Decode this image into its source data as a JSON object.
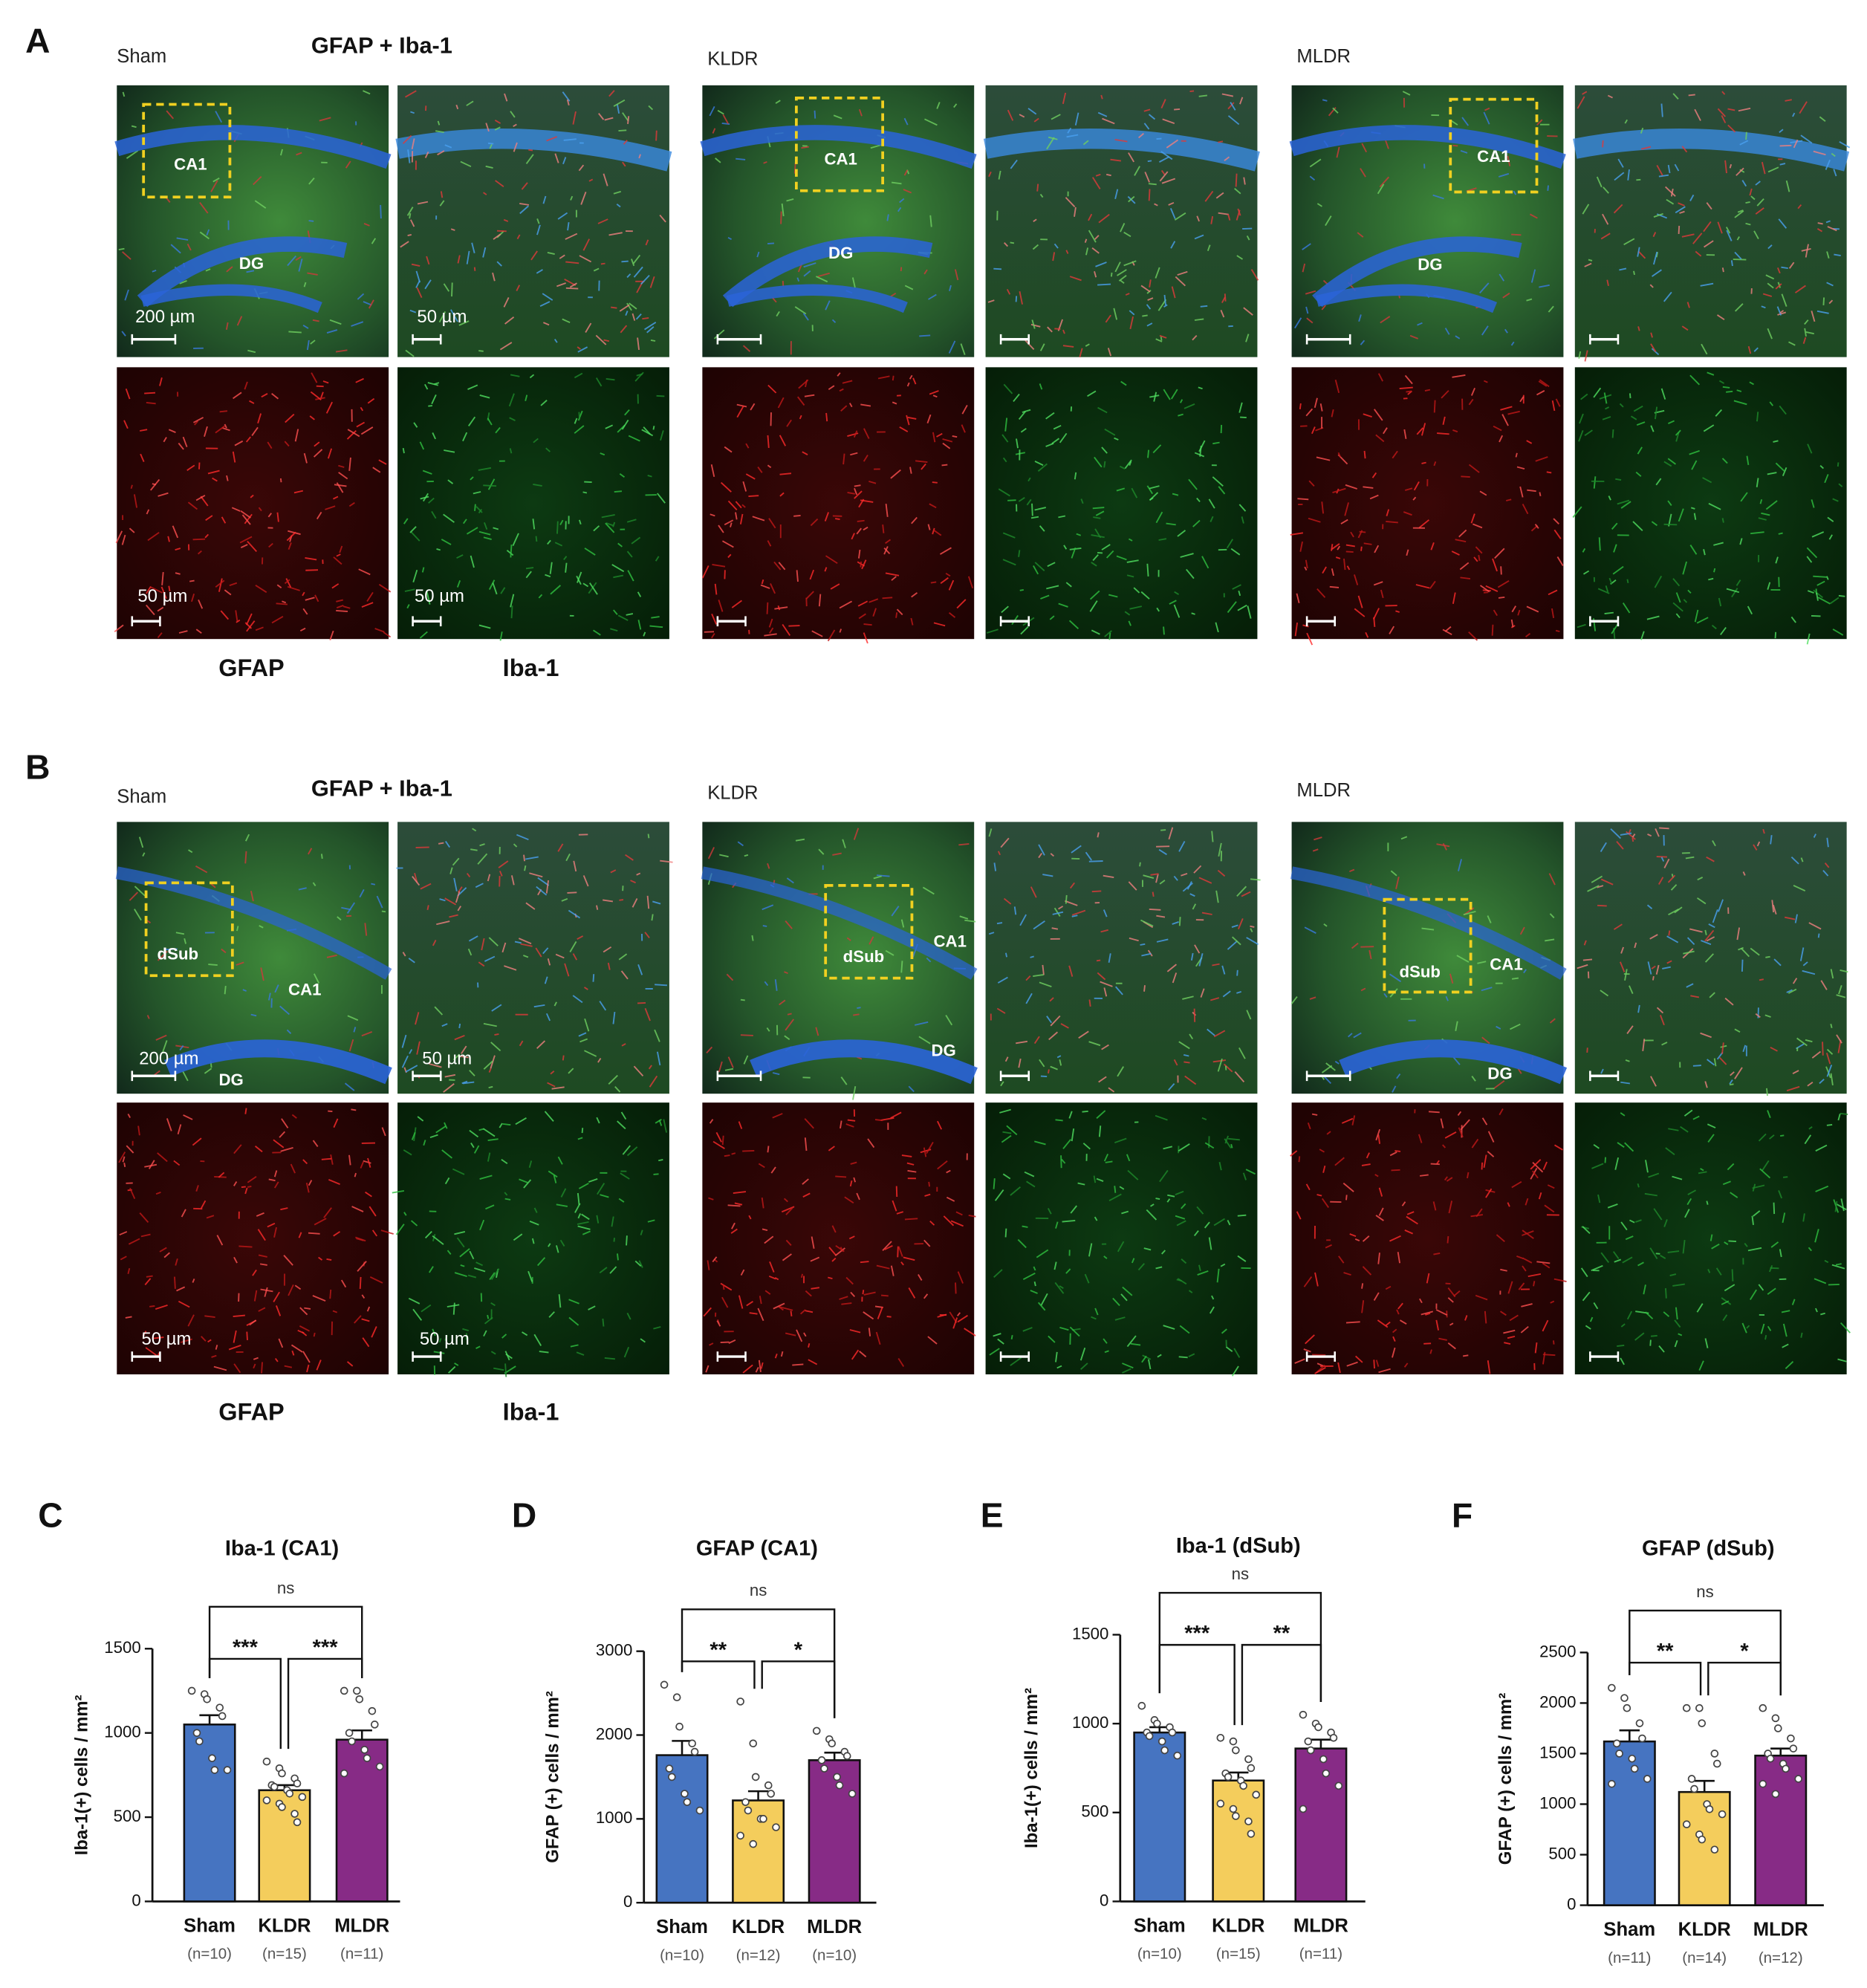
{
  "panel_a": {
    "label": "A",
    "stain": "GFAP + Iba-1",
    "groups": [
      "Sham",
      "KLDR",
      "MLDR"
    ],
    "channels": [
      "GFAP",
      "Iba-1"
    ],
    "regions": [
      [
        "CA1",
        "DG"
      ],
      [
        "CA1",
        "DG"
      ],
      [
        "CA1",
        "DG"
      ]
    ],
    "scale_bars": [
      "200 µm",
      "50 µm",
      "50 µm",
      "50 µm"
    ]
  },
  "panel_b": {
    "label": "B",
    "stain": "GFAP + Iba-1",
    "groups": [
      "Sham",
      "KLDR",
      "MLDR"
    ],
    "channels": [
      "GFAP",
      "Iba-1"
    ],
    "regions": [
      [
        "dSub",
        "CA1",
        "DG"
      ],
      [
        "dSub",
        "CA1",
        "DG"
      ],
      [
        "dSub",
        "CA1",
        "DG"
      ]
    ],
    "scale_bars": [
      "200 µm",
      "50 µm",
      "50 µm",
      "50 µm"
    ]
  },
  "chart_data": [
    {
      "type": "bar",
      "panel_label": "C",
      "title": "Iba-1 (CA1)",
      "ylabel": "Iba-1(+) cells / mm²",
      "categories": [
        "Sham",
        "KLDR",
        "MLDR"
      ],
      "category_notes": [
        "(n=10)",
        "(n=15)",
        "(n=11)"
      ],
      "colors": [
        "#4674c1",
        "#f4cd5c",
        "#872b86"
      ],
      "values": [
        1050,
        660,
        960
      ],
      "errors": [
        55,
        30,
        55
      ],
      "points": [
        [
          1250,
          1230,
          1200,
          1150,
          1100,
          1000,
          950,
          850,
          780,
          780
        ],
        [
          830,
          790,
          760,
          730,
          700,
          690,
          680,
          660,
          640,
          620,
          600,
          580,
          560,
          520,
          470
        ],
        [
          1250,
          1250,
          1200,
          1130,
          1050,
          1000,
          950,
          900,
          850,
          800,
          760
        ]
      ],
      "ylim": [
        0,
        1500
      ],
      "yticks": [
        0,
        500,
        1000,
        1500
      ],
      "brackets": [
        {
          "from": "Sham",
          "to": "MLDR",
          "label": "ns"
        },
        {
          "from": "Sham",
          "to": "KLDR",
          "label": "***"
        },
        {
          "from": "KLDR",
          "to": "MLDR",
          "label": "***"
        }
      ]
    },
    {
      "type": "bar",
      "panel_label": "D",
      "title": "GFAP (CA1)",
      "ylabel": "GFAP (+) cells / mm²",
      "categories": [
        "Sham",
        "KLDR",
        "MLDR"
      ],
      "category_notes": [
        "(n=10)",
        "(n=12)",
        "(n=10)"
      ],
      "colors": [
        "#4674c1",
        "#f4cd5c",
        "#872b86"
      ],
      "values": [
        1760,
        1220,
        1700
      ],
      "errors": [
        170,
        110,
        90
      ],
      "points": [
        [
          2600,
          2450,
          2100,
          1900,
          1800,
          1600,
          1500,
          1300,
          1200,
          1100
        ],
        [
          2400,
          1900,
          1500,
          1400,
          1300,
          1200,
          1100,
          1000,
          1000,
          900,
          800,
          700
        ],
        [
          2050,
          1950,
          1900,
          1800,
          1750,
          1700,
          1600,
          1500,
          1400,
          1300
        ]
      ],
      "ylim": [
        0,
        3000
      ],
      "yticks": [
        0,
        1000,
        2000,
        3000
      ],
      "brackets": [
        {
          "from": "Sham",
          "to": "MLDR",
          "label": "ns"
        },
        {
          "from": "Sham",
          "to": "KLDR",
          "label": "**"
        },
        {
          "from": "KLDR",
          "to": "MLDR",
          "label": "*"
        }
      ]
    },
    {
      "type": "bar",
      "panel_label": "E",
      "title": "Iba-1 (dSub)",
      "ylabel": "Iba-1(+) cells / mm²",
      "categories": [
        "Sham",
        "KLDR",
        "MLDR"
      ],
      "category_notes": [
        "(n=10)",
        "(n=15)",
        "(n=11)"
      ],
      "colors": [
        "#4674c1",
        "#f4cd5c",
        "#872b86"
      ],
      "values": [
        950,
        680,
        860
      ],
      "errors": [
        30,
        45,
        50
      ],
      "points": [
        [
          1100,
          1020,
          1000,
          980,
          950,
          950,
          930,
          900,
          850,
          820
        ],
        [
          920,
          900,
          850,
          800,
          750,
          720,
          700,
          680,
          650,
          600,
          550,
          520,
          480,
          450,
          380
        ],
        [
          1050,
          1000,
          980,
          950,
          920,
          900,
          850,
          800,
          720,
          650,
          520
        ]
      ],
      "ylim": [
        0,
        1500
      ],
      "yticks": [
        0,
        500,
        1000,
        1500
      ],
      "brackets": [
        {
          "from": "Sham",
          "to": "MLDR",
          "label": "ns"
        },
        {
          "from": "Sham",
          "to": "KLDR",
          "label": "***"
        },
        {
          "from": "KLDR",
          "to": "MLDR",
          "label": "**"
        }
      ]
    },
    {
      "type": "bar",
      "panel_label": "F",
      "title": "GFAP (dSub)",
      "ylabel": "GFAP (+) cells / mm²",
      "categories": [
        "Sham",
        "KLDR",
        "MLDR"
      ],
      "category_notes": [
        "(n=11)",
        "(n=14)",
        "(n=12)"
      ],
      "colors": [
        "#4674c1",
        "#f4cd5c",
        "#872b86"
      ],
      "values": [
        1620,
        1120,
        1480
      ],
      "errors": [
        110,
        110,
        70
      ],
      "points": [
        [
          2150,
          2050,
          1950,
          1800,
          1650,
          1600,
          1500,
          1450,
          1350,
          1250,
          1200
        ],
        [
          1950,
          1950,
          1800,
          1500,
          1400,
          1250,
          1150,
          1000,
          950,
          900,
          800,
          700,
          650,
          550
        ],
        [
          1950,
          1850,
          1750,
          1650,
          1550,
          1500,
          1450,
          1400,
          1350,
          1250,
          1200,
          1100
        ]
      ],
      "ylim": [
        0,
        2500
      ],
      "yticks": [
        0,
        500,
        1000,
        1500,
        2000,
        2500
      ],
      "brackets": [
        {
          "from": "Sham",
          "to": "MLDR",
          "label": "ns"
        },
        {
          "from": "Sham",
          "to": "KLDR",
          "label": "**"
        },
        {
          "from": "KLDR",
          "to": "MLDR",
          "label": "*"
        }
      ]
    }
  ]
}
